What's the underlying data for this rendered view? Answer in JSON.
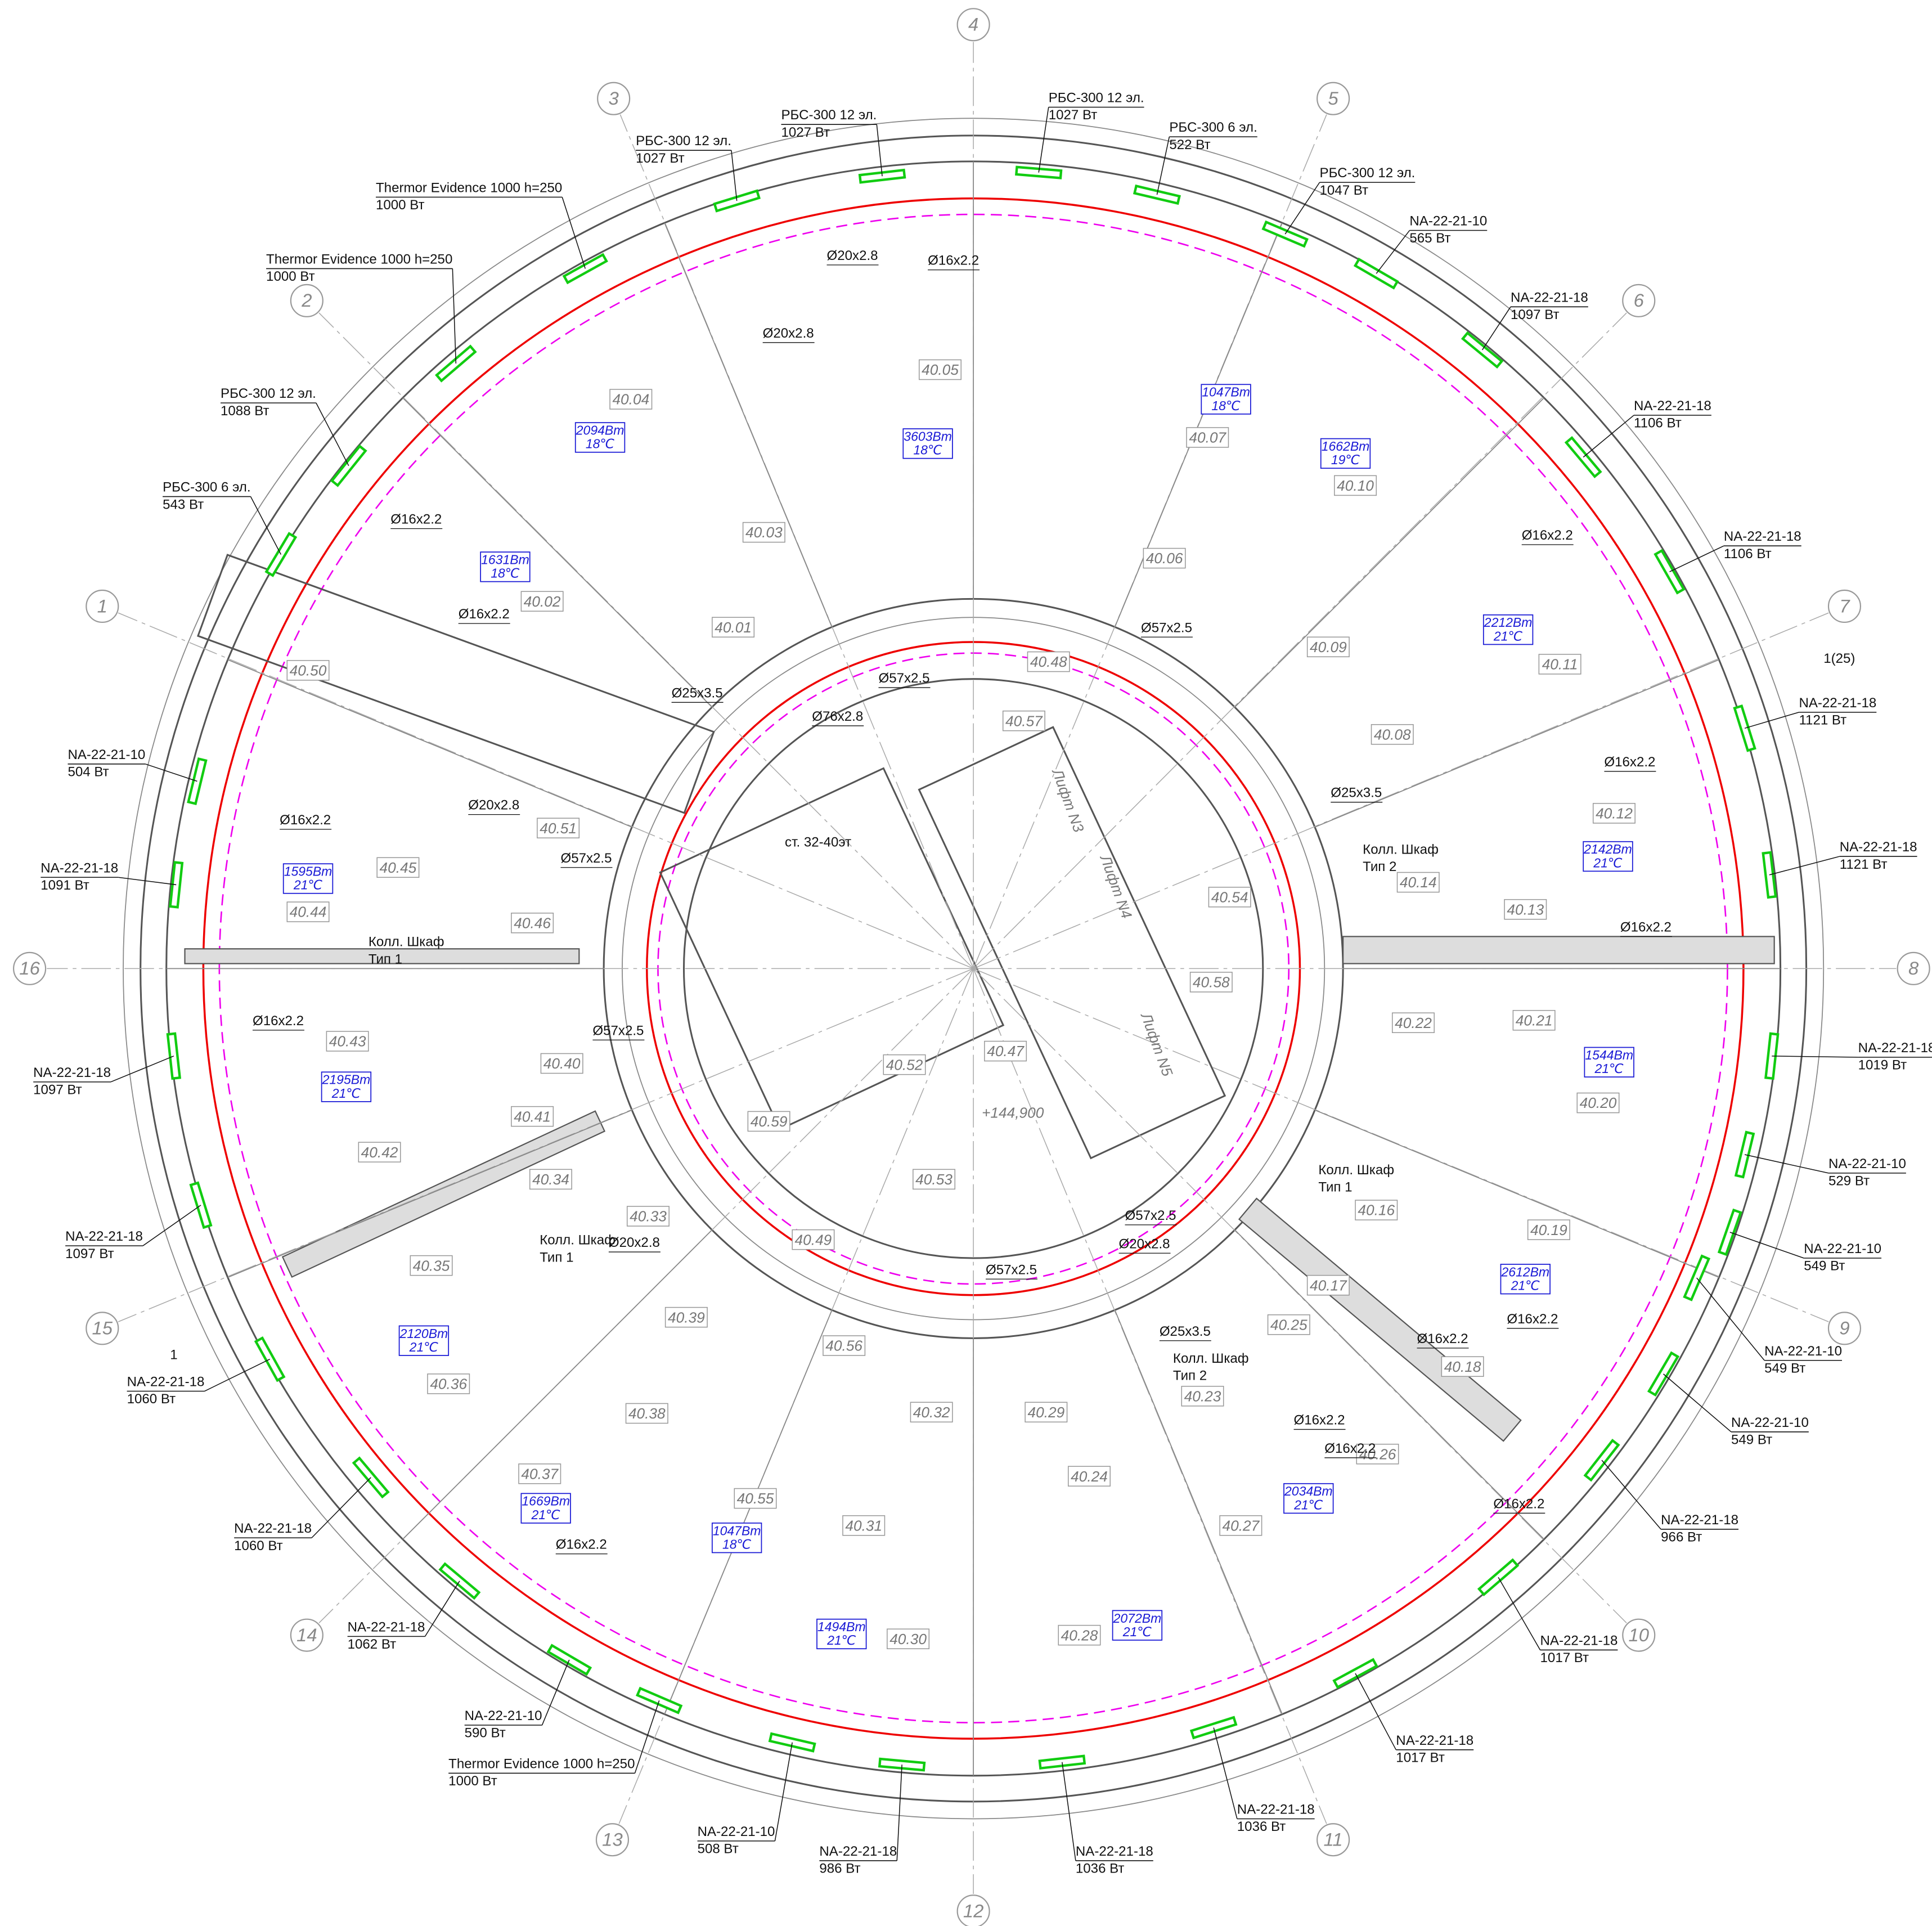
{
  "grid_axes": [
    "1",
    "2",
    "3",
    "4",
    "5",
    "6",
    "7",
    "8",
    "9",
    "10",
    "11",
    "12",
    "13",
    "14",
    "15",
    "16"
  ],
  "rooms": [
    "40.01",
    "40.02",
    "40.03",
    "40.04",
    "40.05",
    "40.06",
    "40.07",
    "40.08",
    "40.09",
    "40.10",
    "40.11",
    "40.12",
    "40.13",
    "40.14",
    "40.16",
    "40.17",
    "40.18",
    "40.19",
    "40.20",
    "40.21",
    "40.22",
    "40.23",
    "40.24",
    "40.25",
    "40.26",
    "40.27",
    "40.28",
    "40.29",
    "40.30",
    "40.31",
    "40.32",
    "40.33",
    "40.34",
    "40.35",
    "40.36",
    "40.37",
    "40.38",
    "40.39",
    "40.40",
    "40.41",
    "40.42",
    "40.43",
    "40.44",
    "40.45",
    "40.46",
    "40.47",
    "40.48",
    "40.49",
    "40.50",
    "40.51",
    "40.52",
    "40.53",
    "40.54",
    "40.55",
    "40.56",
    "40.57",
    "40.58",
    "40.59"
  ],
  "heat_loads": [
    {
      "power": "2094Вт",
      "temp": "18℃"
    },
    {
      "power": "3603Вт",
      "temp": "18℃"
    },
    {
      "power": "1631Вт",
      "temp": "18℃"
    },
    {
      "power": "1047Вт",
      "temp": "18℃"
    },
    {
      "power": "1662Вт",
      "temp": "19℃"
    },
    {
      "power": "2212Вт",
      "temp": "21℃"
    },
    {
      "power": "2142Вт",
      "temp": "21℃"
    },
    {
      "power": "1595Вт",
      "temp": "21℃"
    },
    {
      "power": "2195Вт",
      "temp": "21℃"
    },
    {
      "power": "1544Вт",
      "temp": "21℃"
    },
    {
      "power": "2612Вт",
      "temp": "21℃"
    },
    {
      "power": "2120Вт",
      "temp": "21℃"
    },
    {
      "power": "1669Вт",
      "temp": "21℃"
    },
    {
      "power": "1047Вт",
      "temp": "18℃"
    },
    {
      "power": "1494Вт",
      "temp": "21℃"
    },
    {
      "power": "2072Вт",
      "temp": "21℃"
    },
    {
      "power": "2034Вт",
      "temp": "21℃"
    }
  ],
  "radiators": [
    {
      "model": "Thermor Evidence 1000 h=250",
      "power": "1000 Вт"
    },
    {
      "model": "Thermor Evidence 1000 h=250",
      "power": "1000 Вт"
    },
    {
      "model": "РБС-300 12 эл.",
      "power": "1088 Вт"
    },
    {
      "model": "РБС-300 6 эл.",
      "power": "543 Вт"
    },
    {
      "model": "РБС-300 12 эл.",
      "power": "1027 Вт"
    },
    {
      "model": "РБС-300 12 эл.",
      "power": "1027 Вт"
    },
    {
      "model": "РБС-300 12 эл.",
      "power": "1027 Вт"
    },
    {
      "model": "РБС-300 6 эл.",
      "power": "522 Вт"
    },
    {
      "model": "РБС-300 12 эл.",
      "power": "1047 Вт"
    },
    {
      "model": "NA-22-21-10",
      "power": "565 Вт"
    },
    {
      "model": "NA-22-21-18",
      "power": "1097 Вт"
    },
    {
      "model": "NA-22-21-18",
      "power": "1106 Вт"
    },
    {
      "model": "NA-22-21-18",
      "power": "1106 Вт"
    },
    {
      "model": "NA-22-21-18",
      "power": "1121 Вт"
    },
    {
      "model": "NA-22-21-18",
      "power": "1121 Вт"
    },
    {
      "model": "NA-22-21-18",
      "power": "1019 Вт"
    },
    {
      "model": "NA-22-21-10",
      "power": "529 Вт"
    },
    {
      "model": "NA-22-21-10",
      "power": "549 Вт"
    },
    {
      "model": "NA-22-21-10",
      "power": "549 Вт"
    },
    {
      "model": "NA-22-21-10",
      "power": "549 Вт"
    },
    {
      "model": "NA-22-21-18",
      "power": "966 Вт"
    },
    {
      "model": "NA-22-21-18",
      "power": "1017 Вт"
    },
    {
      "model": "NA-22-21-18",
      "power": "1017 Вт"
    },
    {
      "model": "NA-22-21-18",
      "power": "1036 Вт"
    },
    {
      "model": "NA-22-21-18",
      "power": "1036 Вт"
    },
    {
      "model": "NA-22-21-18",
      "power": "986 Вт"
    },
    {
      "model": "NA-22-21-10",
      "power": "508 Вт"
    },
    {
      "model": "Thermor Evidence 1000 h=250",
      "power": "1000 Вт"
    },
    {
      "model": "NA-22-21-10",
      "power": "590 Вт"
    },
    {
      "model": "NA-22-21-18",
      "power": "1062 Вт"
    },
    {
      "model": "NA-22-21-18",
      "power": "1060 Вт"
    },
    {
      "model": "NA-22-21-18",
      "power": "1060 Вт"
    },
    {
      "model": "NA-22-21-18",
      "power": "1097 Вт"
    },
    {
      "model": "NA-22-21-18",
      "power": "1097 Вт"
    },
    {
      "model": "NA-22-21-18",
      "power": "1091 Вт"
    },
    {
      "model": "NA-22-21-10",
      "power": "504 Вт"
    }
  ],
  "pipes": [
    "Ø20x2.8",
    "Ø16x2.2",
    "Ø20x2.8",
    "Ø16x2.2",
    "Ø16x2.2",
    "Ø25x3.5",
    "Ø57x2.5",
    "Ø76x2.8",
    "Ø16x2.2",
    "Ø20x2.8",
    "Ø57x2.5",
    "Ø16x2.2",
    "Ø57x2.5",
    "Ø20x2.8",
    "Ø57x2.5",
    "Ø57x2.5",
    "Ø20x2.8",
    "Ø25x3.5",
    "Ø16x2.2",
    "Ø16x2.2",
    "Ø16x2.2",
    "Ø16x2.2",
    "Ø16x2.2",
    "Ø16x2.2",
    "Ø16x2.2",
    "Ø16x2.2",
    "Ø25x3.5",
    "Ø57x2.5",
    "Ø16x2.2"
  ],
  "collector_cabinets": [
    {
      "name": "Колл. Шкаф",
      "type": "Тип 2"
    },
    {
      "name": "Колл. Шкаф",
      "type": "Тип 1"
    },
    {
      "name": "Колл. Шкаф",
      "type": "Тип 1"
    },
    {
      "name": "Колл. Шкаф",
      "type": "Тип 1"
    },
    {
      "name": "Колл. Шкаф",
      "type": "Тип 2"
    }
  ],
  "riser": "ст. 32-40эт",
  "elevation": "+144,900",
  "elevators": [
    "Лифт N3",
    "Лифт N4",
    "Лифт N5"
  ],
  "section_marks": [
    "1(25)",
    "1"
  ]
}
